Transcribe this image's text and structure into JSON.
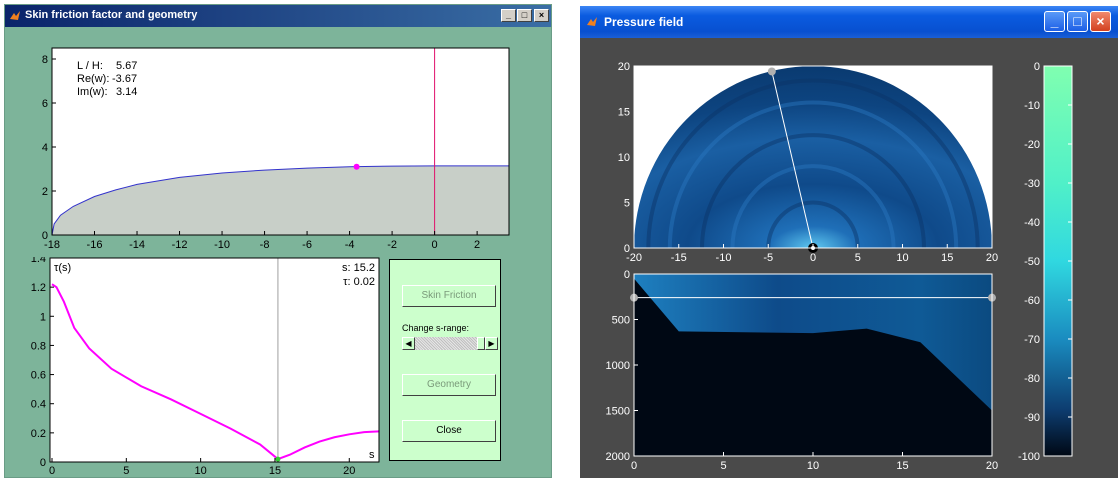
{
  "win1": {
    "title": "Skin friction factor and geometry",
    "controls": {
      "minimize": "_",
      "maximize": "□",
      "close": "×"
    },
    "geometry_axes": {
      "x_ticks": [
        "-18",
        "-16",
        "-14",
        "-12",
        "-10",
        "-8",
        "-6",
        "-4",
        "-2",
        "0",
        "2"
      ],
      "y_ticks": [
        "0",
        "2",
        "4",
        "6",
        "8"
      ],
      "info": {
        "l_over_h_label": "L / H:",
        "l_over_h": "5.67",
        "re_label": "Re(w):",
        "re": "-3.67",
        "im_label": "Im(w):",
        "im": "3.14"
      }
    },
    "tau_axes": {
      "x_ticks": [
        "0",
        "5",
        "10",
        "15",
        "20"
      ],
      "y_ticks": [
        "0",
        "0.2",
        "0.4",
        "0.6",
        "0.8",
        "1",
        "1.2",
        "1.4"
      ],
      "ylabel": "τ(s)",
      "xlabel": "s",
      "s_readout": "s: 15.2",
      "tau_readout": "τ: 0.02"
    },
    "panel": {
      "skin_friction": "Skin Friction",
      "change_range": "Change s-range:",
      "geometry": "Geometry",
      "close": "Close"
    },
    "colors": {
      "curve": "#ff00ff",
      "cursor": "#e0106a",
      "boundary": "#3333cc",
      "fill": "#c8cfc8"
    }
  },
  "win2": {
    "title": "Pressure field",
    "controls": {
      "minimize": "_",
      "maximize": "□",
      "close": "×"
    },
    "top_axes": {
      "x_ticks": [
        "-20",
        "-15",
        "-10",
        "-5",
        "0",
        "5",
        "10",
        "15",
        "20"
      ],
      "y_ticks": [
        "0",
        "5",
        "10",
        "15",
        "20"
      ]
    },
    "bottom_axes": {
      "x_ticks": [
        "0",
        "5",
        "10",
        "15",
        "20"
      ],
      "y_ticks": [
        "0",
        "500",
        "1000",
        "1500",
        "2000"
      ]
    },
    "colorbar": {
      "ticks": [
        "0",
        "-10",
        "-20",
        "-30",
        "-40",
        "-50",
        "-60",
        "-70",
        "-80",
        "-90",
        "-100"
      ]
    }
  },
  "chart_data": [
    {
      "type": "area",
      "x_range": [
        -18,
        3.5
      ],
      "y_range": [
        0,
        8.5
      ],
      "series": [
        {
          "x": [
            -18,
            -17.9,
            -17.6,
            -17,
            -16,
            -15,
            -14,
            -12,
            -10,
            -8,
            -6,
            -4,
            -3.67,
            -2,
            0,
            1,
            3.5
          ],
          "values": [
            0,
            0.5,
            0.9,
            1.3,
            1.75,
            2.05,
            2.3,
            2.62,
            2.82,
            2.95,
            3.04,
            3.1,
            3.11,
            3.13,
            3.14,
            3.14,
            3.14
          ]
        }
      ],
      "marker": {
        "x": -3.67,
        "y": 3.1
      },
      "cursor_x": 0
    },
    {
      "type": "line",
      "x_range": [
        0,
        22
      ],
      "y_range": [
        0,
        1.4
      ],
      "series": [
        {
          "x": [
            0,
            0.3,
            0.8,
            1.5,
            2.5,
            4,
            6,
            8,
            10,
            12,
            14,
            15.2,
            16,
            17,
            18,
            19,
            20,
            21,
            22
          ],
          "values": [
            1.22,
            1.2,
            1.1,
            0.92,
            0.78,
            0.64,
            0.52,
            0.43,
            0.33,
            0.23,
            0.12,
            0.02,
            0.05,
            0.1,
            0.14,
            0.17,
            0.19,
            0.205,
            0.21
          ]
        }
      ],
      "cursor_x": 15.2
    },
    {
      "type": "heatmap",
      "x_range": [
        -20,
        20
      ],
      "y_range": [
        0,
        20
      ],
      "colorbar_range": [
        -100,
        0
      ]
    },
    {
      "type": "heatmap",
      "x_range": [
        0,
        20
      ],
      "y_range": [
        0,
        2000
      ],
      "colorbar_range": [
        -100,
        0
      ]
    }
  ]
}
